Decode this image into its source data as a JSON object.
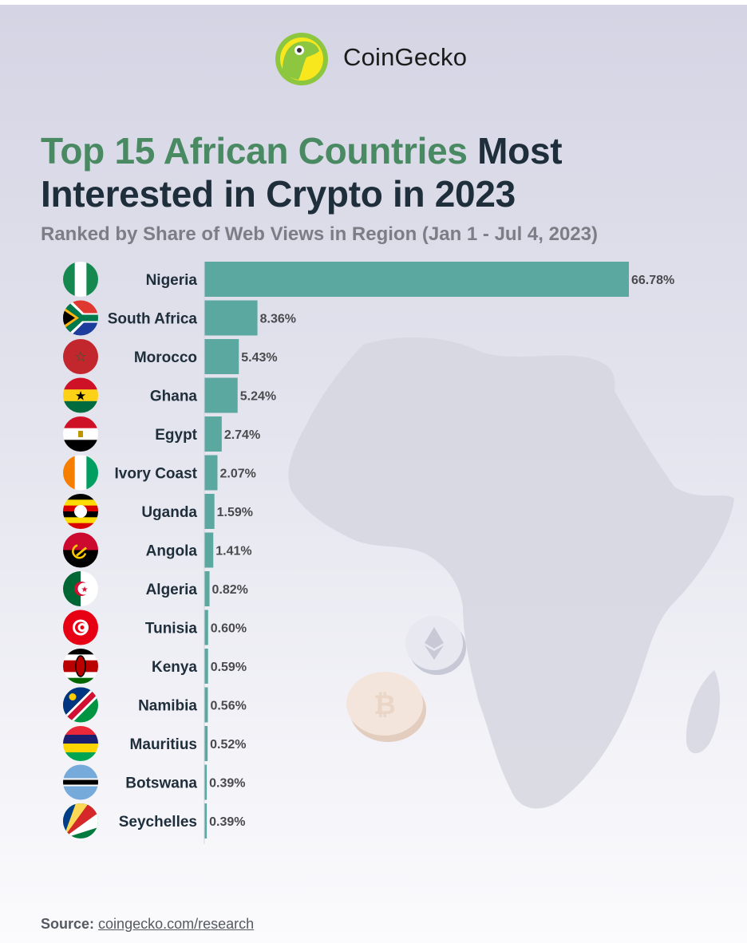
{
  "brand": {
    "name": "CoinGecko"
  },
  "title_highlight": "Top 15 African Countries",
  "title_rest": " Most Interested in Crypto in 2023",
  "subtitle": "Ranked by Share of Web Views in Region (Jan 1 - Jul 4, 2023)",
  "source": {
    "label": "Source:",
    "link": "coingecko.com/research"
  },
  "colors": {
    "bar": "#5ba8a0",
    "title_highlight": "#4a8a63",
    "title": "#1f2e3b",
    "subtitle": "#7d7d86",
    "label": "#1f2e3b"
  },
  "chart_data": {
    "type": "bar",
    "orientation": "horizontal",
    "title": "Top 15 African Countries Most Interested in Crypto in 2023",
    "subtitle": "Ranked by Share of Web Views in Region (Jan 1 - Jul 4, 2023)",
    "unit": "%",
    "xlim": [
      0,
      66.78
    ],
    "grid": false,
    "categories": [
      "Nigeria",
      "South Africa",
      "Morocco",
      "Ghana",
      "Egypt",
      "Ivory Coast",
      "Uganda",
      "Angola",
      "Algeria",
      "Tunisia",
      "Kenya",
      "Namibia",
      "Mauritius",
      "Botswana",
      "Seychelles"
    ],
    "values": [
      66.78,
      8.36,
      5.43,
      5.24,
      2.74,
      2.07,
      1.59,
      1.41,
      0.82,
      0.6,
      0.59,
      0.56,
      0.52,
      0.39,
      0.39
    ],
    "labels": [
      "66.78%",
      "8.36%",
      "5.43%",
      "5.24%",
      "2.74%",
      "2.07%",
      "1.59%",
      "1.41%",
      "0.82%",
      "0.60%",
      "0.59%",
      "0.56%",
      "0.52%",
      "0.39%",
      "0.39%"
    ],
    "flags": [
      "nigeria-flag-icon",
      "south-africa-flag-icon",
      "morocco-flag-icon",
      "ghana-flag-icon",
      "egypt-flag-icon",
      "ivory-coast-flag-icon",
      "uganda-flag-icon",
      "angola-flag-icon",
      "algeria-flag-icon",
      "tunisia-flag-icon",
      "kenya-flag-icon",
      "namibia-flag-icon",
      "mauritius-flag-icon",
      "botswana-flag-icon",
      "seychelles-flag-icon"
    ]
  }
}
